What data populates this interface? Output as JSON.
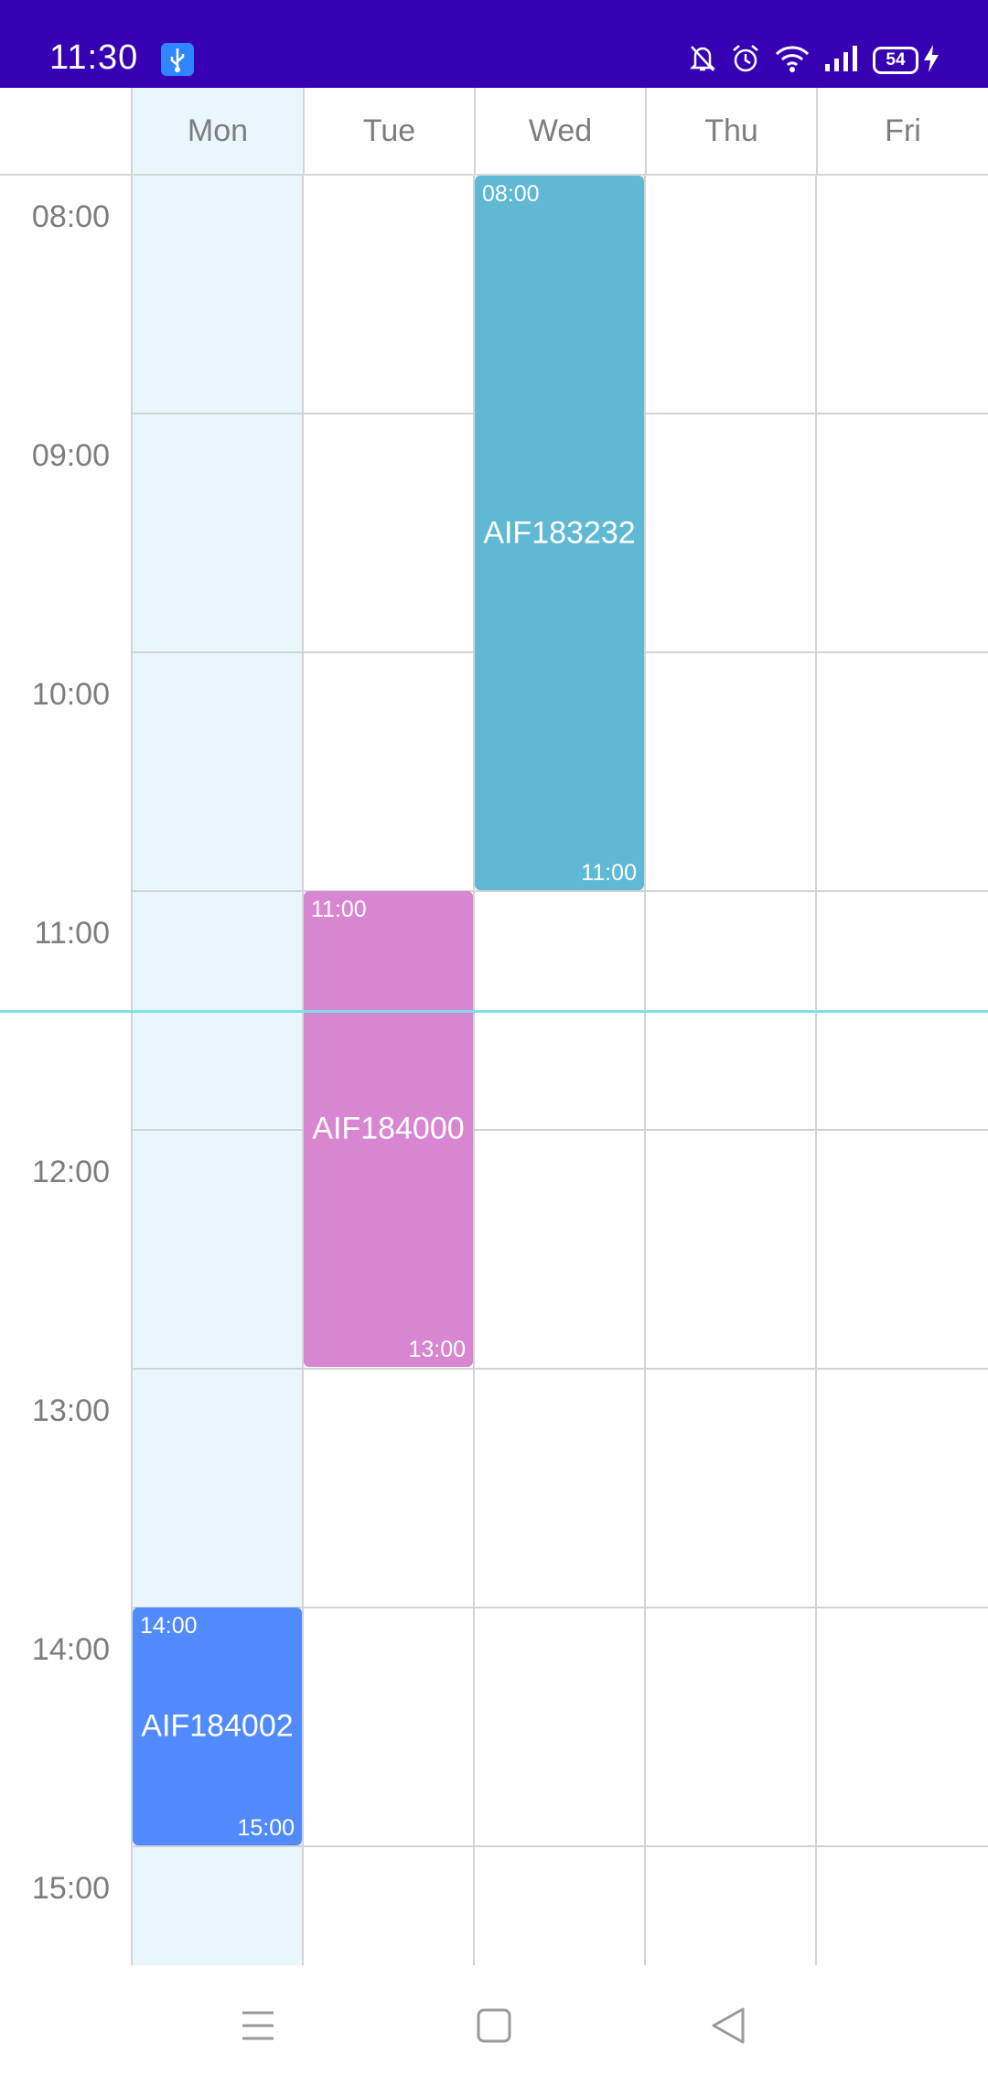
{
  "status_bar": {
    "time": "11:30",
    "battery": "54",
    "icons": [
      "usb-debug-icon",
      "bell-muted-icon",
      "alarm-icon",
      "wifi-icon",
      "signal-icon",
      "battery-icon",
      "charging-icon"
    ]
  },
  "calendar": {
    "days": [
      {
        "label": "Mon",
        "today": true
      },
      {
        "label": "Tue",
        "today": false
      },
      {
        "label": "Wed",
        "today": false
      },
      {
        "label": "Thu",
        "today": false
      },
      {
        "label": "Fri",
        "today": false
      }
    ],
    "hours": [
      "08:00",
      "09:00",
      "10:00",
      "11:00",
      "12:00",
      "13:00",
      "14:00",
      "15:00"
    ],
    "current_time": "11:30",
    "events": [
      {
        "title": "AIF183232",
        "day": "Wed",
        "start": "08:00",
        "end": "11:00",
        "color": "#5fb8d4"
      },
      {
        "title": "AIF184000",
        "day": "Tue",
        "start": "11:00",
        "end": "13:00",
        "color": "#d886d2"
      },
      {
        "title": "AIF184002",
        "day": "Mon",
        "start": "14:00",
        "end": "15:00",
        "color": "#518afc"
      }
    ],
    "colors": {
      "today_bg": "#e9f7fd",
      "now_line": "#7fe0ea",
      "header_bg": "#3700b3"
    }
  },
  "nav_bar": {
    "icons": [
      "menu-icon",
      "home-icon",
      "back-icon"
    ]
  }
}
